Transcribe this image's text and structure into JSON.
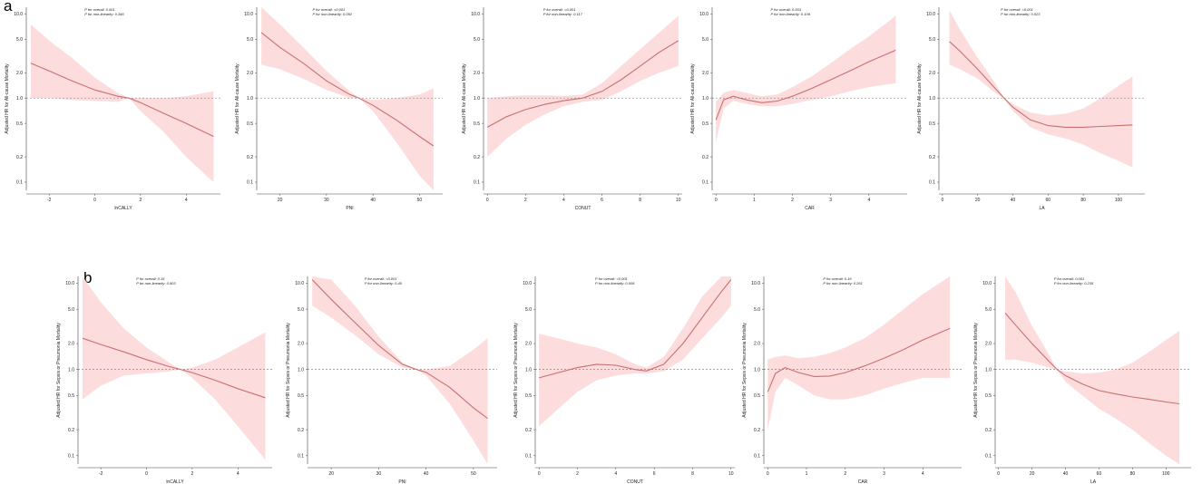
{
  "figure": {
    "panels": [
      {
        "letter": "a",
        "outcome_label": "Adjusted HR for All-cause Mortality"
      },
      {
        "letter": "b",
        "outcome_label": "Adjusted HR for Sepsis or Pneumonia Mortality"
      }
    ],
    "colors": {
      "ci_fill": "#fcdcdc",
      "curve": "#c9706f",
      "reference": "#888888",
      "axis": "#444444"
    }
  },
  "chart_data": [
    {
      "type": "line",
      "row": "a",
      "xlabel": "lnCALLY",
      "ylabel": "Adjusted HR for All-cause Mortality",
      "p_overall": "P for overall: 0.001",
      "p_nonlinear": "P for non-linearity: 0.345",
      "y_scale": "log",
      "ylim": [
        0.08,
        12
      ],
      "yticks": [
        0.1,
        0.2,
        0.5,
        1.0,
        2.0,
        5.0,
        10.0
      ],
      "xlim": [
        -3,
        5.5
      ],
      "xticks": [
        -2,
        0,
        2,
        4
      ],
      "reference_line": 1.0,
      "x": [
        -2.8,
        -2,
        -1,
        0,
        1,
        1.5,
        2,
        3,
        4,
        5.2
      ],
      "y": [
        2.6,
        2.1,
        1.6,
        1.25,
        1.05,
        1.0,
        0.88,
        0.66,
        0.5,
        0.35
      ],
      "lower": [
        1.0,
        1.0,
        0.95,
        0.92,
        0.9,
        1.0,
        0.7,
        0.4,
        0.2,
        0.1
      ],
      "upper": [
        7.5,
        4.8,
        3.0,
        1.75,
        1.15,
        1.0,
        1.0,
        1.0,
        1.05,
        1.2
      ]
    },
    {
      "type": "line",
      "row": "a",
      "xlabel": "PNI",
      "ylabel": "Adjusted HR for All-cause Mortality",
      "p_overall": "P for overall: <0.001",
      "p_nonlinear": "P for non-linearity: 0.092",
      "y_scale": "log",
      "ylim": [
        0.08,
        12
      ],
      "yticks": [
        0.1,
        0.2,
        0.5,
        1.0,
        2.0,
        5.0,
        10.0
      ],
      "xlim": [
        15,
        55
      ],
      "xticks": [
        20,
        30,
        40,
        50
      ],
      "reference_line": 1.0,
      "x": [
        16,
        20,
        25,
        30,
        35,
        37,
        40,
        45,
        50,
        53
      ],
      "y": [
        6.0,
        4.0,
        2.6,
        1.6,
        1.1,
        1.0,
        0.82,
        0.55,
        0.35,
        0.27
      ],
      "lower": [
        2.5,
        2.2,
        1.7,
        1.25,
        1.0,
        1.0,
        0.7,
        0.3,
        0.12,
        0.08
      ],
      "upper": [
        12,
        7.5,
        4.0,
        2.1,
        1.2,
        1.0,
        0.95,
        1.0,
        1.1,
        1.3
      ]
    },
    {
      "type": "line",
      "row": "a",
      "xlabel": "CONUT",
      "ylabel": "Adjusted HR for All-cause Mortality",
      "p_overall": "P for overall: <0.001",
      "p_nonlinear": "P for non-linearity: 0.117",
      "y_scale": "log",
      "ylim": [
        0.08,
        12
      ],
      "yticks": [
        0.1,
        0.2,
        0.5,
        1.0,
        2.0,
        5.0,
        10.0
      ],
      "xlim": [
        -0.2,
        10.2
      ],
      "xticks": [
        0,
        2,
        4,
        6,
        8,
        10
      ],
      "reference_line": 1.0,
      "x": [
        0,
        1,
        2,
        3,
        4,
        5,
        6,
        7,
        8,
        9,
        10
      ],
      "y": [
        0.45,
        0.6,
        0.73,
        0.84,
        0.93,
        1.0,
        1.2,
        1.65,
        2.4,
        3.5,
        4.8
      ],
      "lower": [
        0.2,
        0.33,
        0.48,
        0.64,
        0.8,
        0.9,
        0.95,
        1.2,
        1.6,
        2.0,
        2.4
      ],
      "upper": [
        1.0,
        1.05,
        1.08,
        1.08,
        1.06,
        1.1,
        1.5,
        2.4,
        3.8,
        6.0,
        9.5
      ]
    },
    {
      "type": "line",
      "row": "a",
      "xlabel": "CAR",
      "ylabel": "Adjusted HR for All-cause Mortality",
      "p_overall": "P for overall: 0.003",
      "p_nonlinear": "P for non-linearity: 0.109",
      "y_scale": "log",
      "ylim": [
        0.08,
        12
      ],
      "yticks": [
        0.1,
        0.2,
        0.5,
        1.0,
        2.0,
        5.0,
        10.0
      ],
      "xlim": [
        -0.1,
        5.0
      ],
      "xticks": [
        0,
        1,
        2,
        3,
        4
      ],
      "reference_line": 1.0,
      "x": [
        0,
        0.2,
        0.45,
        0.8,
        1.2,
        1.6,
        2.0,
        2.5,
        3.0,
        3.5,
        4.0,
        4.7
      ],
      "y": [
        0.55,
        0.95,
        1.05,
        0.95,
        0.88,
        0.92,
        1.05,
        1.3,
        1.65,
        2.1,
        2.7,
        3.7
      ],
      "lower": [
        0.3,
        0.75,
        0.93,
        0.85,
        0.8,
        0.8,
        0.85,
        0.95,
        1.05,
        1.2,
        1.35,
        1.5
      ],
      "upper": [
        0.9,
        1.15,
        1.25,
        1.15,
        1.05,
        1.1,
        1.35,
        1.8,
        2.6,
        3.8,
        5.4,
        9.5
      ]
    },
    {
      "type": "line",
      "row": "a",
      "xlabel": "LA",
      "ylabel": "Adjusted HR for All-cause Mortality",
      "p_overall": "P for overall: <0.001",
      "p_nonlinear": "P for non-linearity: 0.023",
      "y_scale": "log",
      "ylim": [
        0.08,
        12
      ],
      "yticks": [
        0.1,
        0.2,
        0.5,
        1.0,
        2.0,
        5.0,
        10.0
      ],
      "xlim": [
        -2,
        115
      ],
      "xticks": [
        0,
        20,
        40,
        60,
        80,
        100
      ],
      "reference_line": 1.0,
      "x": [
        4,
        10,
        20,
        30,
        35,
        40,
        50,
        60,
        70,
        80,
        90,
        100,
        108
      ],
      "y": [
        4.7,
        3.6,
        2.2,
        1.3,
        1.0,
        0.78,
        0.55,
        0.47,
        0.45,
        0.45,
        0.46,
        0.47,
        0.48
      ],
      "lower": [
        2.5,
        2.2,
        1.7,
        1.15,
        1.0,
        0.7,
        0.45,
        0.37,
        0.33,
        0.28,
        0.22,
        0.18,
        0.15
      ],
      "upper": [
        11,
        6.5,
        3.0,
        1.5,
        1.0,
        0.85,
        0.67,
        0.62,
        0.65,
        0.75,
        1.0,
        1.4,
        1.8
      ]
    },
    {
      "type": "line",
      "row": "b",
      "xlabel": "lnCALLY",
      "ylabel": "Adjusted HR for Sepsis or Pneumonia Mortality",
      "p_overall": "P for overall: 0.15",
      "p_nonlinear": "P for non-linearity: 0.903",
      "y_scale": "log",
      "ylim": [
        0.08,
        12
      ],
      "yticks": [
        0.1,
        0.2,
        0.5,
        1.0,
        2.0,
        5.0,
        10.0
      ],
      "xlim": [
        -3,
        5.5
      ],
      "xticks": [
        -2,
        0,
        2,
        4
      ],
      "reference_line": 1.0,
      "x": [
        -2.8,
        -2,
        -1,
        0,
        1,
        1.5,
        2,
        3,
        4,
        5.2
      ],
      "y": [
        2.3,
        1.95,
        1.6,
        1.3,
        1.08,
        1.0,
        0.92,
        0.75,
        0.6,
        0.47
      ],
      "lower": [
        0.45,
        0.65,
        0.85,
        0.9,
        0.95,
        1.0,
        0.8,
        0.45,
        0.22,
        0.09
      ],
      "upper": [
        12,
        6.0,
        3.0,
        1.8,
        1.2,
        1.0,
        1.05,
        1.3,
        1.8,
        2.7
      ]
    },
    {
      "type": "line",
      "row": "b",
      "xlabel": "PNI",
      "ylabel": "Adjusted HR for Sepsis or Pneumonia Mortality",
      "p_overall": "P for overall: <0.001",
      "p_nonlinear": "P for non-linearity: 0.45",
      "y_scale": "log",
      "ylim": [
        0.08,
        12
      ],
      "yticks": [
        0.1,
        0.2,
        0.5,
        1.0,
        2.0,
        5.0,
        10.0
      ],
      "xlim": [
        15,
        55
      ],
      "xticks": [
        20,
        30,
        40,
        50
      ],
      "reference_line": 1.0,
      "x": [
        16,
        20,
        25,
        30,
        35,
        38,
        40,
        45,
        50,
        53
      ],
      "y": [
        11,
        6.5,
        3.5,
        1.9,
        1.15,
        1.0,
        0.93,
        0.62,
        0.36,
        0.27
      ],
      "lower": [
        5.5,
        4.0,
        2.5,
        1.5,
        1.05,
        1.0,
        0.85,
        0.4,
        0.15,
        0.08
      ],
      "upper": [
        12,
        11,
        5.5,
        2.4,
        1.2,
        1.0,
        1.0,
        1.1,
        1.7,
        2.3
      ]
    },
    {
      "type": "line",
      "row": "b",
      "xlabel": "CONUT",
      "ylabel": "Adjusted HR for Sepsis or Pneumonia Mortality",
      "p_overall": "P for overall: <0.001",
      "p_nonlinear": "P for non-linearity: 0.006",
      "y_scale": "log",
      "ylim": [
        0.08,
        12
      ],
      "yticks": [
        0.1,
        0.2,
        0.5,
        1.0,
        2.0,
        5.0,
        10.0
      ],
      "xlim": [
        -0.2,
        10.2
      ],
      "xticks": [
        0,
        2,
        4,
        6,
        8,
        10
      ],
      "reference_line": 1.0,
      "x": [
        0,
        1,
        2,
        3,
        4,
        5,
        5.6,
        6.5,
        7.5,
        8.5,
        9.5,
        10
      ],
      "y": [
        0.8,
        0.92,
        1.05,
        1.15,
        1.12,
        1.0,
        0.96,
        1.15,
        2.0,
        4.0,
        8.0,
        11
      ],
      "lower": [
        0.22,
        0.35,
        0.55,
        0.75,
        0.85,
        0.9,
        0.9,
        0.95,
        1.3,
        2.3,
        4.0,
        5.5
      ],
      "upper": [
        2.6,
        2.3,
        2.0,
        1.8,
        1.5,
        1.15,
        1.05,
        1.4,
        3.0,
        7.0,
        12,
        12
      ]
    },
    {
      "type": "line",
      "row": "b",
      "xlabel": "CAR",
      "ylabel": "Adjusted HR for Sepsis or Pneumonia Mortality",
      "p_overall": "P for overall: 0.16",
      "p_nonlinear": "P for non-linearity: 0.261",
      "y_scale": "log",
      "ylim": [
        0.08,
        12
      ],
      "yticks": [
        0.1,
        0.2,
        0.5,
        1.0,
        2.0,
        5.0,
        10.0
      ],
      "xlim": [
        -0.1,
        5.0
      ],
      "xticks": [
        0,
        1,
        2,
        3,
        4
      ],
      "reference_line": 1.0,
      "x": [
        0,
        0.2,
        0.45,
        0.8,
        1.2,
        1.6,
        2.0,
        2.5,
        3.0,
        3.5,
        4.0,
        4.7
      ],
      "y": [
        0.55,
        0.9,
        1.05,
        0.92,
        0.83,
        0.84,
        0.92,
        1.1,
        1.35,
        1.7,
        2.2,
        3.0
      ],
      "lower": [
        0.2,
        0.55,
        0.8,
        0.65,
        0.5,
        0.45,
        0.45,
        0.5,
        0.6,
        0.7,
        0.8,
        0.8
      ],
      "upper": [
        1.3,
        1.4,
        1.45,
        1.35,
        1.4,
        1.55,
        1.8,
        2.3,
        3.3,
        5.0,
        7.5,
        12
      ]
    },
    {
      "type": "line",
      "row": "b",
      "xlabel": "LA",
      "ylabel": "Adjusted HR for Sepsis or Pneumonia Mortality",
      "p_overall": "P for overall: 0.001",
      "p_nonlinear": "P for non-linearity: 0.235",
      "y_scale": "log",
      "ylim": [
        0.08,
        12
      ],
      "yticks": [
        0.1,
        0.2,
        0.5,
        1.0,
        2.0,
        5.0,
        10.0
      ],
      "xlim": [
        -2,
        115
      ],
      "xticks": [
        0,
        20,
        40,
        60,
        80,
        100
      ],
      "reference_line": 1.0,
      "x": [
        4,
        10,
        20,
        30,
        35,
        40,
        50,
        60,
        70,
        80,
        90,
        100,
        108
      ],
      "y": [
        4.5,
        3.3,
        2.0,
        1.25,
        1.0,
        0.85,
        0.68,
        0.57,
        0.52,
        0.48,
        0.45,
        0.42,
        0.4
      ],
      "lower": [
        1.3,
        1.3,
        1.2,
        1.05,
        1.0,
        0.72,
        0.5,
        0.35,
        0.27,
        0.2,
        0.14,
        0.1,
        0.08
      ],
      "upper": [
        12,
        8.0,
        3.2,
        1.5,
        1.0,
        0.95,
        0.9,
        0.92,
        1.0,
        1.2,
        1.6,
        2.2,
        2.8
      ]
    }
  ]
}
